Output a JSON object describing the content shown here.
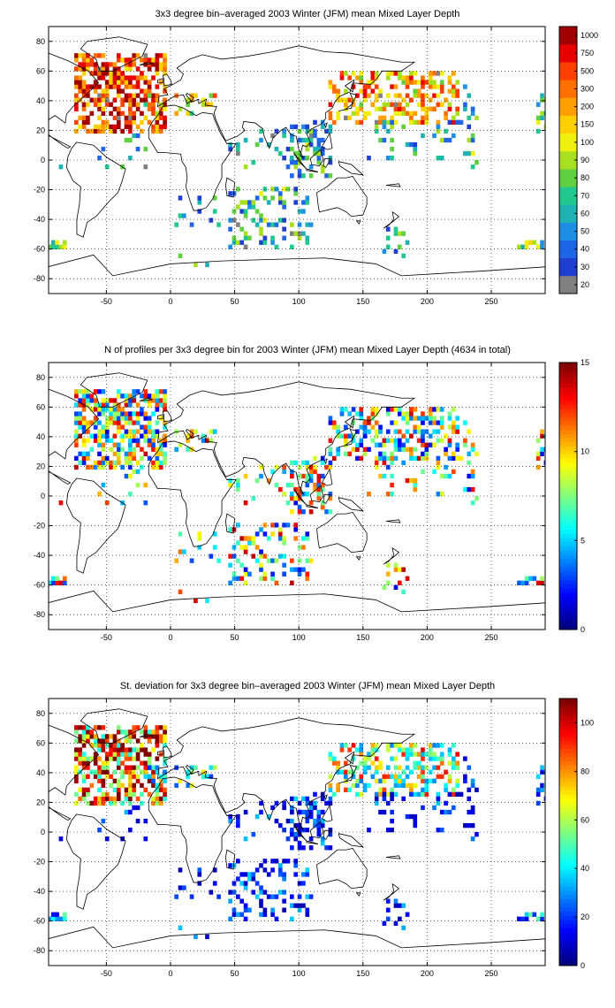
{
  "panels": [
    {
      "title": "3x3 degree bin–averaged 2003 Winter (JFM) mean Mixed Layer Depth",
      "colorbar": {
        "type": "discrete",
        "labels": [
          "20",
          "30",
          "40",
          "50",
          "60",
          "70",
          "80",
          "90",
          "100",
          "150",
          "200",
          "300",
          "500",
          "750",
          "1000"
        ],
        "colors": [
          "#808080",
          "#1f3fd0",
          "#1f66e6",
          "#1f8fe6",
          "#1fb2b2",
          "#20c890",
          "#60d040",
          "#a8e020",
          "#f0f010",
          "#ffd000",
          "#ffa000",
          "#ff7000",
          "#ff4000",
          "#e80000",
          "#a00000"
        ]
      }
    },
    {
      "title": "N of profiles per 3x3 degree bin for 2003 Winter (JFM) mean Mixed Layer Depth  (4634 in total)",
      "colorbar": {
        "type": "continuous",
        "min": 0,
        "max": 15,
        "ticks": [
          0,
          5,
          10,
          15
        ],
        "tick_labels": [
          "0",
          "5",
          "10",
          "15"
        ]
      }
    },
    {
      "title": "St. deviation for 3x3 degree bin–averaged 2003 Winter (JFM) mean Mixed Layer Depth",
      "colorbar": {
        "type": "continuous",
        "min": 0,
        "max": 110,
        "ticks": [
          0,
          20,
          40,
          60,
          80,
          100
        ],
        "tick_labels": [
          "0",
          "20",
          "40",
          "60",
          "80",
          "100"
        ]
      }
    }
  ],
  "chart_data": [
    {
      "type": "heatmap",
      "title": "3x3 degree bin–averaged 2003 Winter (JFM) mean Mixed Layer Depth",
      "xlim": [
        -95,
        292
      ],
      "ylim": [
        -90,
        90
      ],
      "xticks": [
        -50,
        0,
        50,
        100,
        150,
        200,
        250
      ],
      "yticks": [
        -80,
        -60,
        -40,
        -20,
        0,
        20,
        40,
        60,
        80
      ],
      "grid": true,
      "bin_size_deg": 3,
      "colorbar_labels": [
        "20",
        "30",
        "40",
        "50",
        "60",
        "70",
        "80",
        "90",
        "100",
        "150",
        "200",
        "300",
        "500",
        "750",
        "1000"
      ]
    },
    {
      "type": "heatmap",
      "title": "N of profiles per 3x3 degree bin for 2003 Winter (JFM) mean Mixed Layer Depth  (4634 in total)",
      "xlim": [
        -95,
        292
      ],
      "ylim": [
        -90,
        90
      ],
      "xticks": [
        -50,
        0,
        50,
        100,
        150,
        200,
        250
      ],
      "yticks": [
        -80,
        -60,
        -40,
        -20,
        0,
        20,
        40,
        60,
        80
      ],
      "grid": true,
      "total_profiles": 4634,
      "color_range": [
        0,
        15
      ]
    },
    {
      "type": "heatmap",
      "title": "St. deviation for 3x3 degree bin–averaged 2003 Winter (JFM) mean Mixed Layer Depth",
      "xlim": [
        -95,
        292
      ],
      "ylim": [
        -90,
        90
      ],
      "xticks": [
        -50,
        0,
        50,
        100,
        150,
        200,
        250
      ],
      "yticks": [
        -80,
        -60,
        -40,
        -20,
        0,
        20,
        40,
        60,
        80
      ],
      "grid": true,
      "color_range": [
        0,
        110
      ]
    }
  ]
}
